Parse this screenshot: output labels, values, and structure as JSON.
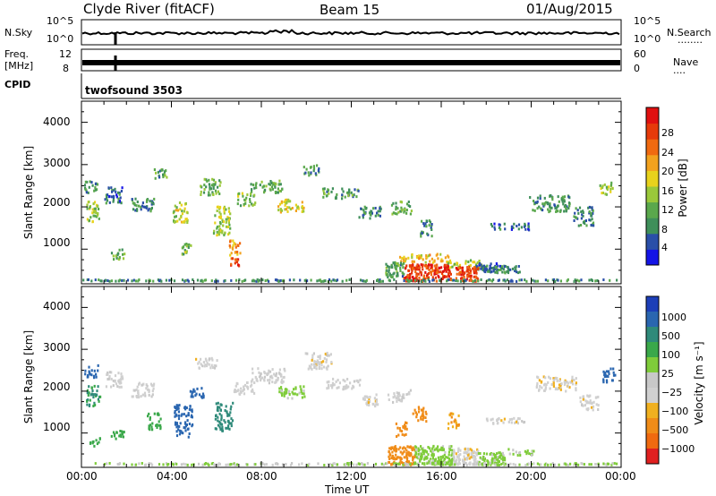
{
  "header": {
    "station": "Clyde River (fitACF)",
    "beam": "Beam 15",
    "date": "01/Aug/2015"
  },
  "side_labels": {
    "nsky": "N.Sky",
    "nsearch": "N.Search",
    "nsearch_dots": "········",
    "freq_line1": "Freq.",
    "freq_line2": "[MHz]",
    "nave": "Nave",
    "nave_dots": "····",
    "cpid": "CPID",
    "cpid_value": "twofsound 3503"
  },
  "noise_axis": {
    "left_top": "10^5",
    "left_bottom": "10^0",
    "right_top": "10^5",
    "right_bottom": "10^0"
  },
  "freq_axis": {
    "left_top": "12",
    "left_bottom": "8",
    "right_top": "60",
    "right_bottom": "0"
  },
  "x_axis": {
    "label": "Time UT",
    "ticks": [
      "00:00",
      "04:00",
      "08:00",
      "12:00",
      "16:00",
      "20:00",
      "00:00"
    ]
  },
  "y_axis": {
    "label": "Slant Range [km]",
    "ticks": [
      "1000",
      "2000",
      "3000",
      "4000"
    ]
  },
  "power_bar": {
    "label": "Power [dB]",
    "ticks": [
      "4",
      "8",
      "12",
      "16",
      "20",
      "24",
      "28"
    ],
    "colors": [
      "#1414e6",
      "#2a4fa8",
      "#3f8f5a",
      "#5aa84c",
      "#9ac83a",
      "#e8d21c",
      "#f2a21e",
      "#f06a10",
      "#e63a0a",
      "#e01010"
    ]
  },
  "velocity_bar": {
    "label": "Velocity [m s⁻¹]",
    "ticks": [
      "1000",
      "500",
      "100",
      "25",
      "−25",
      "−100",
      "−500",
      "−1000"
    ],
    "colors": [
      "#1d3fb8",
      "#2a66b0",
      "#2f8a7a",
      "#3aa84a",
      "#7fcc3a",
      "#c8c8c8",
      "#d0d0d0",
      "#f0b020",
      "#f08c18",
      "#f06a10",
      "#e02020"
    ]
  },
  "chart_data": [
    {
      "type": "heatmap",
      "title": "Power",
      "x_range_hours": [
        0,
        24
      ],
      "y_range_km": [
        180,
        4500
      ],
      "clusters": [
        {
          "t": 0.4,
          "r": 2500,
          "dt": 0.6,
          "dr": 300,
          "v": 10
        },
        {
          "t": 0.5,
          "r": 1900,
          "dt": 0.6,
          "dr": 500,
          "v": 15
        },
        {
          "t": 1.4,
          "r": 2300,
          "dt": 0.8,
          "dr": 400,
          "v": 8
        },
        {
          "t": 1.6,
          "r": 900,
          "dt": 0.6,
          "dr": 250,
          "v": 12
        },
        {
          "t": 2.7,
          "r": 2050,
          "dt": 1.0,
          "dr": 350,
          "v": 9
        },
        {
          "t": 3.5,
          "r": 2800,
          "dt": 0.6,
          "dr": 250,
          "v": 11
        },
        {
          "t": 4.4,
          "r": 1900,
          "dt": 0.7,
          "dr": 500,
          "v": 17
        },
        {
          "t": 4.6,
          "r": 1000,
          "dt": 0.5,
          "dr": 300,
          "v": 14
        },
        {
          "t": 5.7,
          "r": 2500,
          "dt": 0.9,
          "dr": 400,
          "v": 12
        },
        {
          "t": 6.2,
          "r": 1700,
          "dt": 0.8,
          "dr": 700,
          "v": 16
        },
        {
          "t": 6.8,
          "r": 1050,
          "dt": 0.5,
          "dr": 400,
          "v": 22
        },
        {
          "t": 7.3,
          "r": 2200,
          "dt": 0.8,
          "dr": 300,
          "v": 14
        },
        {
          "t": 8.2,
          "r": 2500,
          "dt": 1.4,
          "dr": 300,
          "v": 12
        },
        {
          "t": 9.3,
          "r": 2050,
          "dt": 1.2,
          "dr": 300,
          "v": 18
        },
        {
          "t": 10.2,
          "r": 2900,
          "dt": 0.7,
          "dr": 250,
          "v": 10
        },
        {
          "t": 11.5,
          "r": 2350,
          "dt": 1.6,
          "dr": 250,
          "v": 11
        },
        {
          "t": 12.8,
          "r": 1900,
          "dt": 1.0,
          "dr": 300,
          "v": 9
        },
        {
          "t": 14.2,
          "r": 2000,
          "dt": 0.9,
          "dr": 300,
          "v": 12
        },
        {
          "t": 15.2,
          "r": 800,
          "dt": 2.2,
          "dr": 200,
          "v": 20
        },
        {
          "t": 15.3,
          "r": 1500,
          "dt": 0.5,
          "dr": 400,
          "v": 10
        },
        {
          "t": 17.0,
          "r": 650,
          "dt": 1.6,
          "dr": 200,
          "v": 16
        },
        {
          "t": 19.0,
          "r": 1550,
          "dt": 1.8,
          "dr": 150,
          "v": 8
        },
        {
          "t": 20.8,
          "r": 2100,
          "dt": 1.8,
          "dr": 400,
          "v": 10
        },
        {
          "t": 22.3,
          "r": 1800,
          "dt": 0.9,
          "dr": 450,
          "v": 9
        },
        {
          "t": 23.3,
          "r": 2450,
          "dt": 0.6,
          "dr": 300,
          "v": 14
        },
        {
          "t": 18.3,
          "r": 600,
          "dt": 1.6,
          "dr": 150,
          "v": 7
        }
      ],
      "bands": [
        {
          "t0": 14.3,
          "t1": 16.4,
          "r0": 200,
          "r1": 650,
          "v": 28
        },
        {
          "t0": 16.6,
          "t1": 17.6,
          "r0": 200,
          "r1": 600,
          "v": 27
        },
        {
          "t0": 17.7,
          "t1": 19.5,
          "r0": 450,
          "r1": 620,
          "v": 9
        },
        {
          "t0": 13.5,
          "t1": 14.3,
          "r0": 350,
          "r1": 700,
          "v": 11
        },
        {
          "t0": 6.6,
          "t1": 7.0,
          "r0": 600,
          "r1": 800,
          "v": 26
        }
      ],
      "ground_row": {
        "t0": 0,
        "t1": 24,
        "r0": 190,
        "r1": 290,
        "v": 10
      }
    },
    {
      "type": "heatmap",
      "title": "Velocity",
      "x_range_hours": [
        0,
        24
      ],
      "y_range_km": [
        180,
        4500
      ],
      "clusters": [
        {
          "t": 0.4,
          "r": 2500,
          "dt": 0.6,
          "dr": 300,
          "v": 700
        },
        {
          "t": 0.5,
          "r": 1900,
          "dt": 0.6,
          "dr": 500,
          "v": 200
        },
        {
          "t": 0.6,
          "r": 800,
          "dt": 0.5,
          "dr": 200,
          "v": 150
        },
        {
          "t": 1.4,
          "r": 2300,
          "dt": 0.8,
          "dr": 400,
          "v": 10
        },
        {
          "t": 1.6,
          "r": 1000,
          "dt": 0.6,
          "dr": 250,
          "v": 150
        },
        {
          "t": 2.7,
          "r": 2050,
          "dt": 1.0,
          "dr": 350,
          "v": 5
        },
        {
          "t": 3.2,
          "r": 1300,
          "dt": 0.6,
          "dr": 400,
          "v": 150
        },
        {
          "t": 4.5,
          "r": 1300,
          "dt": 0.8,
          "dr": 800,
          "v": 900
        },
        {
          "t": 5.1,
          "r": 2000,
          "dt": 0.6,
          "dr": 300,
          "v": 600
        },
        {
          "t": 5.5,
          "r": 2700,
          "dt": 1.0,
          "dr": 250,
          "v": 0
        },
        {
          "t": 6.3,
          "r": 1400,
          "dt": 0.8,
          "dr": 700,
          "v": 400
        },
        {
          "t": 7.2,
          "r": 2100,
          "dt": 0.9,
          "dr": 300,
          "v": 5
        },
        {
          "t": 8.3,
          "r": 2400,
          "dt": 1.6,
          "dr": 350,
          "v": 10
        },
        {
          "t": 9.3,
          "r": 2000,
          "dt": 1.2,
          "dr": 300,
          "v": 60
        },
        {
          "t": 10.5,
          "r": 2750,
          "dt": 1.2,
          "dr": 400,
          "v": 0
        },
        {
          "t": 11.6,
          "r": 2200,
          "dt": 1.5,
          "dr": 250,
          "v": 5
        },
        {
          "t": 12.8,
          "r": 1800,
          "dt": 0.8,
          "dr": 300,
          "v": -5
        },
        {
          "t": 14.1,
          "r": 1900,
          "dt": 1.0,
          "dr": 300,
          "v": 8
        },
        {
          "t": 14.2,
          "r": 1100,
          "dt": 0.5,
          "dr": 350,
          "v": -200
        },
        {
          "t": 15.0,
          "r": 1500,
          "dt": 0.6,
          "dr": 400,
          "v": -150
        },
        {
          "t": 16.5,
          "r": 1300,
          "dt": 0.5,
          "dr": 400,
          "v": -90
        },
        {
          "t": 18.8,
          "r": 1300,
          "dt": 1.8,
          "dr": 150,
          "v": 0
        },
        {
          "t": 19.5,
          "r": 550,
          "dt": 1.2,
          "dr": 150,
          "v": 50
        },
        {
          "t": 21.1,
          "r": 2200,
          "dt": 1.8,
          "dr": 350,
          "v": -5
        },
        {
          "t": 22.5,
          "r": 1750,
          "dt": 0.9,
          "dr": 350,
          "v": 0
        },
        {
          "t": 23.4,
          "r": 2400,
          "dt": 0.6,
          "dr": 350,
          "v": 800
        }
      ],
      "bands": [
        {
          "t0": 13.6,
          "t1": 14.8,
          "r0": 250,
          "r1": 700,
          "v": -150
        },
        {
          "t0": 14.8,
          "t1": 16.5,
          "r0": 250,
          "r1": 700,
          "v": 60
        },
        {
          "t0": 16.5,
          "t1": 17.6,
          "r0": 250,
          "r1": 650,
          "v": 0
        },
        {
          "t0": 17.6,
          "t1": 18.8,
          "r0": 250,
          "r1": 550,
          "v": 60
        }
      ],
      "ground_row": {
        "t0": 0,
        "t1": 24,
        "r0": 190,
        "r1": 290,
        "v": 40
      }
    }
  ]
}
